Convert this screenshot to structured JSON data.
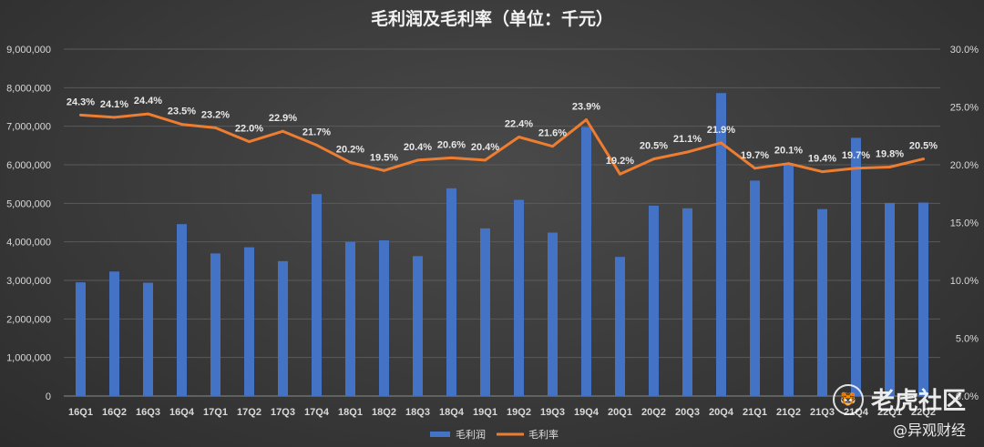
{
  "chart_data": {
    "type": "bar",
    "title": "毛利润及毛利率（单位：千元）",
    "categories": [
      "16Q1",
      "16Q2",
      "16Q3",
      "16Q4",
      "17Q1",
      "17Q2",
      "17Q3",
      "17Q4",
      "18Q1",
      "18Q2",
      "18Q3",
      "18Q4",
      "19Q1",
      "19Q2",
      "19Q3",
      "19Q4",
      "20Q1",
      "20Q2",
      "20Q3",
      "20Q4",
      "21Q1",
      "21Q2",
      "21Q3",
      "21Q4",
      "22Q1",
      "22Q2"
    ],
    "series": [
      {
        "name": "毛利润",
        "type": "bar",
        "axis": "left",
        "color": "#4472c4",
        "values": [
          2950000,
          3230000,
          2940000,
          4460000,
          3700000,
          3860000,
          3500000,
          5240000,
          4000000,
          4040000,
          3630000,
          5390000,
          4350000,
          5090000,
          4240000,
          6980000,
          3610000,
          4940000,
          4870000,
          7860000,
          5590000,
          6000000,
          4850000,
          6700000,
          5010000,
          5020000
        ]
      },
      {
        "name": "毛利率",
        "type": "line",
        "axis": "right",
        "color": "#ed7d31",
        "values": [
          24.3,
          24.1,
          24.4,
          23.5,
          23.2,
          22.0,
          22.9,
          21.7,
          20.2,
          19.5,
          20.4,
          20.6,
          20.4,
          22.4,
          21.6,
          23.9,
          19.2,
          20.5,
          21.1,
          21.9,
          19.7,
          20.1,
          19.4,
          19.7,
          19.8,
          20.5
        ],
        "labels": [
          "24.3%",
          "24.1%",
          "24.4%",
          "23.5%",
          "23.2%",
          "22.0%",
          "22.9%",
          "21.7%",
          "20.2%",
          "19.5%",
          "20.4%",
          "20.6%",
          "20.4%",
          "22.4%",
          "21.6%",
          "23.9%",
          "19.2%",
          "20.5%",
          "21.1%",
          "21.9%",
          "19.7%",
          "20.1%",
          "19.4%",
          "19.7%",
          "19.8%",
          "20.5%"
        ]
      }
    ],
    "y_left": {
      "min": 0,
      "max": 9000000,
      "ticks": [
        "0",
        "1,000,000",
        "2,000,000",
        "3,000,000",
        "4,000,000",
        "5,000,000",
        "6,000,000",
        "7,000,000",
        "8,000,000",
        "9,000,000"
      ]
    },
    "y_right": {
      "min": 0,
      "max": 30,
      "ticks": [
        "0.0%",
        "5.0%",
        "10.0%",
        "15.0%",
        "20.0%",
        "25.0%",
        "30.0%"
      ]
    },
    "grid": true,
    "legend_position": "bottom"
  },
  "watermark": {
    "logo_glyph": "🐯",
    "line1": "老虎社区",
    "line2": "@异观财经"
  }
}
